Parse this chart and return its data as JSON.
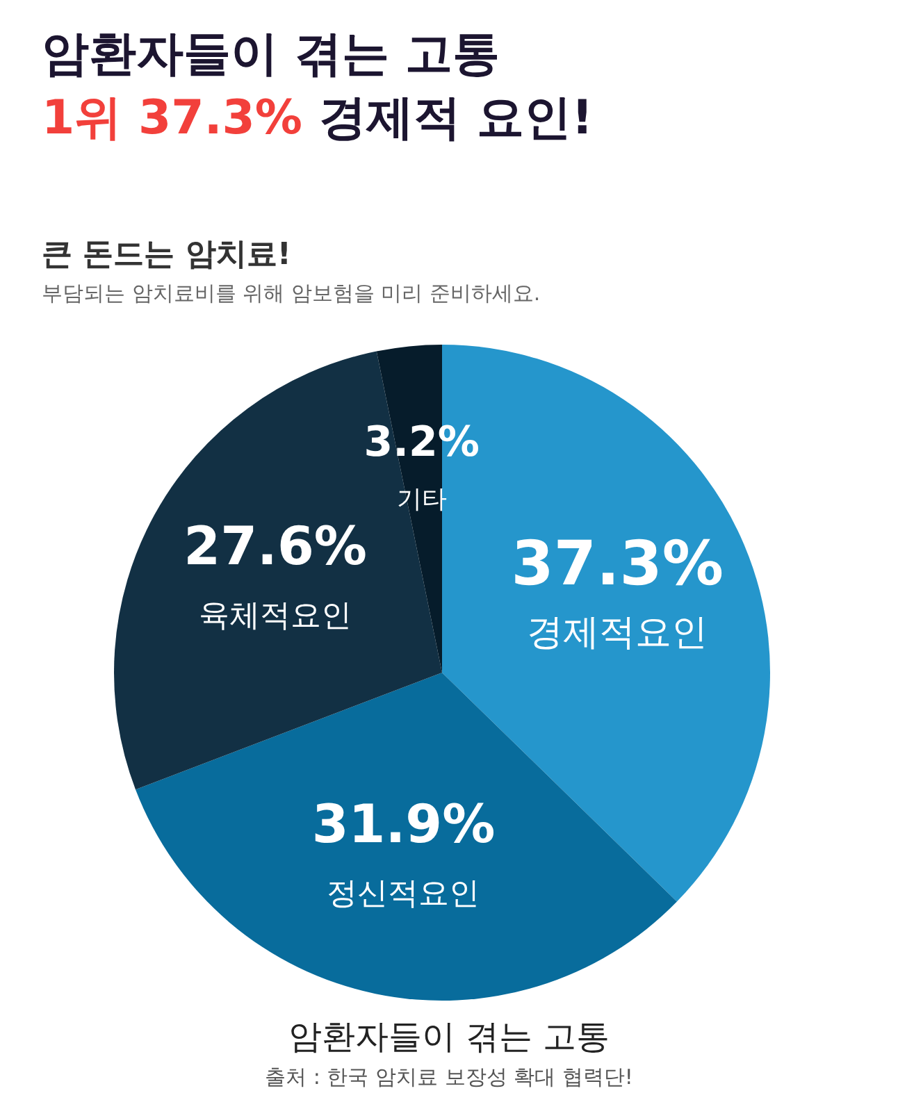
{
  "chart_data": {
    "type": "pie",
    "title": "암환자들이 겪는 고통",
    "subtitle": "1위 37.3% 경제적 요인!",
    "categories": [
      "경제적요인",
      "정신적요인",
      "육체적요인",
      "기타"
    ],
    "values": [
      37.3,
      31.9,
      27.6,
      3.2
    ],
    "value_labels": [
      "37.3%",
      "31.9%",
      "27.6%",
      "3.2%"
    ],
    "colors": [
      "#2596cc",
      "#086c9c",
      "#123044",
      "#061c2b"
    ],
    "legend": false,
    "annotations": [
      "큰 돈드는 암치료!",
      "부담되는 암치료비를 위해 암보험을 미리 준비하세요.",
      "암환자들이 겪는 고통",
      "출처 : 한국 암치료 보장성 확대 협력단!"
    ]
  }
}
